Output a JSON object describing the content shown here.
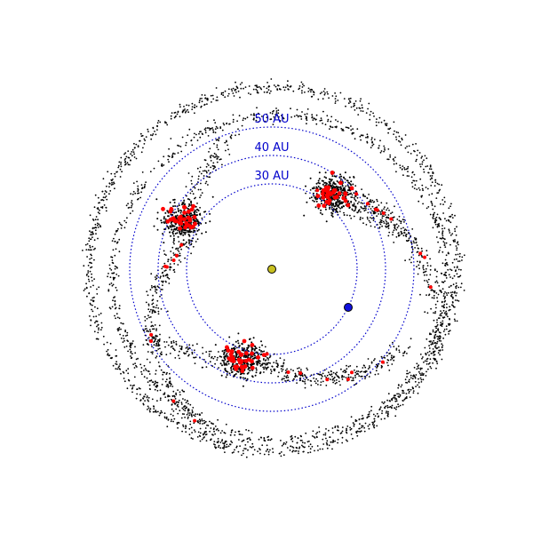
{
  "diagram": {
    "rings": [
      {
        "radius_au": 30,
        "label": "30 AU",
        "color": "#0000cc"
      },
      {
        "radius_au": 40,
        "label": "40 AU",
        "color": "#0000cc"
      },
      {
        "radius_au": 50,
        "label": "50 AU",
        "color": "#0000cc"
      }
    ],
    "sun": {
      "color": "#c8c020"
    },
    "planet": {
      "color": "#1010dd"
    },
    "particles": {
      "background_color": "#000000",
      "highlight_color": "#ff0000"
    }
  }
}
